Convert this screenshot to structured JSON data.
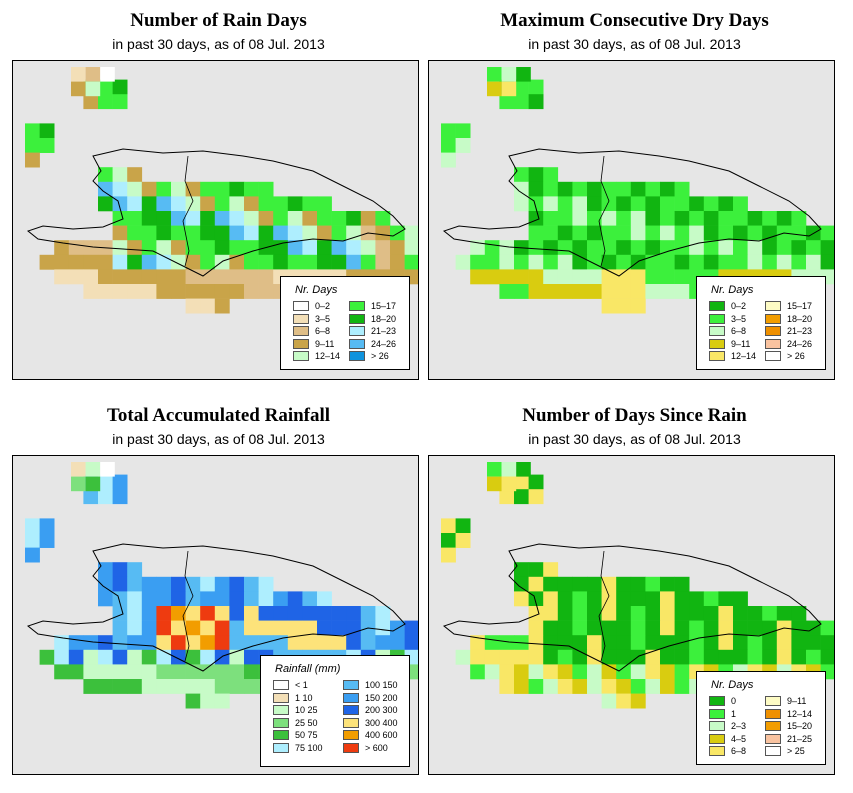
{
  "panels": [
    {
      "id": "rain_days",
      "title": "Number of Rain Days",
      "subtitle": "in past 30 days, as of  08 Jul. 2013",
      "legend": {
        "title": "Nr. Days",
        "columns": 2,
        "items": [
          {
            "label": "0–2",
            "color": "#ffffff"
          },
          {
            "label": "3–5",
            "color": "#f3dfb7"
          },
          {
            "label": "6–8",
            "color": "#dfbe87"
          },
          {
            "label": "9–11",
            "color": "#c9a449"
          },
          {
            "label": "12–14",
            "color": "#c7fbc7"
          },
          {
            "label": "15–17",
            "color": "#3cf03c"
          },
          {
            "label": "18–20",
            "color": "#11b511"
          },
          {
            "label": "21–23",
            "color": "#aeeefe"
          },
          {
            "label": "24–26",
            "color": "#57bbf3"
          },
          {
            "label": "> 26",
            "color": "#0f93dd"
          }
        ]
      },
      "grid": [
        "..............................",
        "....ab........................",
        "....aZ........................",
        "..............................",
        "bb............................",
        "bb..............................",
        "...............................",
        "....bbaaab......................",
        "....abbbbaaaaaaaa..............",
        ".....bbcaaaaaaaccca............",
        ".....bbbacaaaaaaaacaaab........",
        "......caaaaaaaaaaaaaabbbbb.....",
        "...cpccpabppaabbbaaaaaaabb.....",
        "..ccccccabbaabaaaaaaaaabbb.....",
        "..aabbbbbbbbbbbbbbbbbbbbb......",
        "....bbb.....bbbb...............",
        "...........bb..................",
        "..............................",
        ".............................."
      ]
    },
    {
      "id": "dry_days",
      "title": "Maximum Consecutive Dry Days",
      "subtitle": "in past 30 days, as of  08 Jul. 2013",
      "legend": {
        "title": "Nr. Days",
        "columns": 2,
        "items": [
          {
            "label": "0–2",
            "color": "#11b511"
          },
          {
            "label": "3–5",
            "color": "#3cf03c"
          },
          {
            "label": "6–8",
            "color": "#c7fbc7"
          },
          {
            "label": "9–11",
            "color": "#d9cc10"
          },
          {
            "label": "12–14",
            "color": "#f9e766"
          },
          {
            "label": "15–17",
            "color": "#fdfbc4"
          },
          {
            "label": "18–20",
            "color": "#f29d00"
          },
          {
            "label": "21–23",
            "color": "#ef9000"
          },
          {
            "label": "24–26",
            "color": "#f9c3a0"
          },
          {
            "label": "> 26",
            "color": "#ffffff"
          }
        ]
      }
    },
    {
      "id": "rainfall",
      "title": "Total Accumulated Rainfall",
      "subtitle": "in past 30 days, as of  08 Jul. 2013",
      "legend": {
        "title": "Rainfall (mm)",
        "columns": 2,
        "items": [
          {
            "label": "< 1",
            "color": "#ffffff"
          },
          {
            "label": "1    10",
            "color": "#f3dfb7"
          },
          {
            "label": "10    25",
            "color": "#c7fbc7"
          },
          {
            "label": "25    50",
            "color": "#7de07d"
          },
          {
            "label": "50    75",
            "color": "#3cc03c"
          },
          {
            "label": "75    100",
            "color": "#aeeefe"
          },
          {
            "label": "100    150",
            "color": "#57bbf3"
          },
          {
            "label": "150    200",
            "color": "#3a9ef2"
          },
          {
            "label": "200    300",
            "color": "#1f64e6"
          },
          {
            "label": "300    400",
            "color": "#fde37a"
          },
          {
            "label": "400    600",
            "color": "#f29d00"
          },
          {
            "label": "> 600",
            "color": "#ee3b10"
          }
        ]
      }
    },
    {
      "id": "since_rain",
      "title": "Number of Days Since Rain",
      "subtitle": "in past 30 days, as of  08 Jul. 2013",
      "legend": {
        "title": "Nr. Days",
        "columns": 2,
        "items": [
          {
            "label": "0",
            "color": "#11b511"
          },
          {
            "label": "1",
            "color": "#3cf03c"
          },
          {
            "label": "2–3",
            "color": "#c7fbc7"
          },
          {
            "label": "4–5",
            "color": "#d9cc10"
          },
          {
            "label": "6–8",
            "color": "#f9e766"
          },
          {
            "label": "9–11",
            "color": "#fdfbc4"
          },
          {
            "label": "12–14",
            "color": "#ef9000"
          },
          {
            "label": "15–20",
            "color": "#f29d00"
          },
          {
            "label": "21–25",
            "color": "#f9c3a0"
          },
          {
            "label": "> 25",
            "color": "#ffffff"
          }
        ]
      }
    }
  ]
}
